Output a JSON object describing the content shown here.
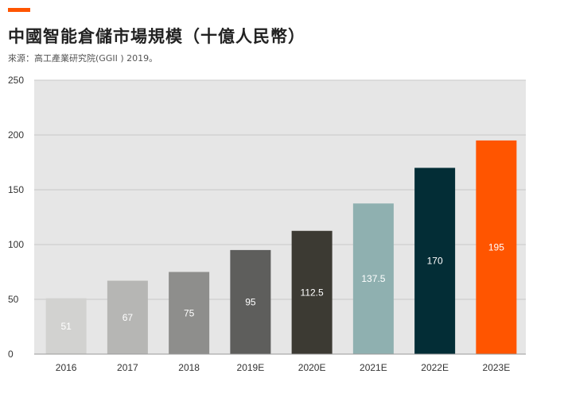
{
  "header": {
    "title": "中國智能倉儲市場規模（十億人民幣）",
    "source": "來源：高工產業研究院(GGII ) 2019。"
  },
  "colors": {
    "accent": "#ff5500",
    "plot_background": "#e6e6e6",
    "gridline": "#c8c8c8"
  },
  "chart_data": {
    "type": "bar",
    "title": "中國智能倉儲市場規模（十億人民幣）",
    "xlabel": "",
    "ylabel": "",
    "categories": [
      "2016",
      "2017",
      "2018",
      "2019E",
      "2020E",
      "2021E",
      "2022E",
      "2023E"
    ],
    "values": [
      51,
      67,
      75,
      95,
      112.5,
      137.5,
      170,
      195
    ],
    "value_labels": [
      "51",
      "67",
      "75",
      "95",
      "112.5",
      "137.5",
      "170",
      "195"
    ],
    "bar_colors": [
      "#d2d2d0",
      "#b6b6b4",
      "#8e8e8c",
      "#5e5e5c",
      "#3c3a33",
      "#8fb0b0",
      "#032d36",
      "#ff5500"
    ],
    "label_colors": [
      "#ffffff",
      "#ffffff",
      "#ffffff",
      "#ffffff",
      "#ffffff",
      "#ffffff",
      "#ffffff",
      "#ffffff"
    ],
    "ylim": [
      0,
      250
    ],
    "yticks": [
      0,
      50,
      100,
      150,
      200,
      250
    ],
    "grid": true,
    "legend": "none"
  }
}
